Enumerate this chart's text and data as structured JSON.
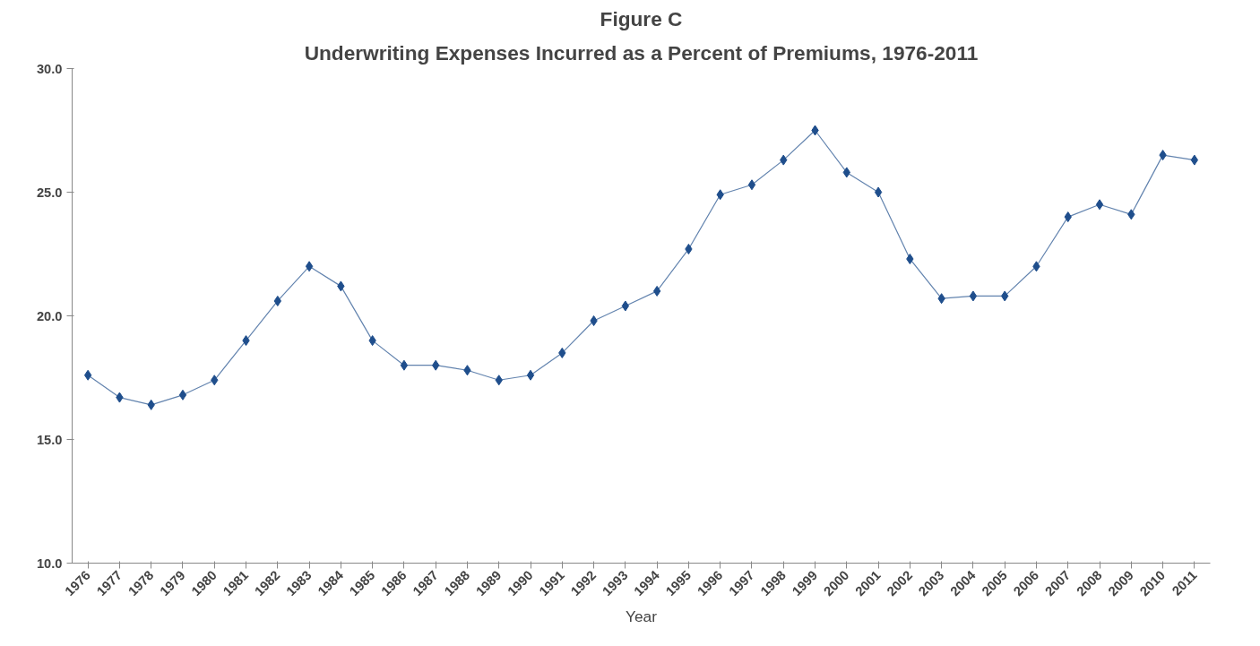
{
  "chart_data": {
    "type": "line",
    "title": "Figure C",
    "subtitle": "Underwriting Expenses Incurred as a Percent of Premiums, 1976-2011",
    "xlabel": "Year",
    "categories": [
      "1976",
      "1977",
      "1978",
      "1979",
      "1980",
      "1981",
      "1982",
      "1983",
      "1984",
      "1985",
      "1986",
      "1987",
      "1988",
      "1989",
      "1990",
      "1991",
      "1992",
      "1993",
      "1994",
      "1995",
      "1996",
      "1997",
      "1998",
      "1999",
      "2000",
      "2001",
      "2002",
      "2003",
      "2004",
      "2005",
      "2006",
      "2007",
      "2008",
      "2009",
      "2010",
      "2011"
    ],
    "series": [
      {
        "color": "#1f4e8c",
        "values": [
          17.6,
          16.7,
          16.4,
          16.8,
          17.4,
          19.0,
          20.6,
          22.0,
          21.2,
          19.0,
          18.0,
          18.0,
          17.8,
          17.4,
          17.6,
          18.5,
          19.8,
          20.4,
          21.0,
          22.7,
          24.9,
          25.3,
          26.3,
          27.5,
          25.8,
          25.0,
          22.3,
          20.7,
          20.8,
          20.8,
          22.0,
          24.0,
          24.5,
          24.1,
          26.5,
          26.3
        ]
      }
    ],
    "ylim": [
      10,
      30
    ],
    "yticks": [
      {
        "value": 10,
        "label": "10.0"
      },
      {
        "value": 15,
        "label": "15.0"
      },
      {
        "value": 20,
        "label": "20.0"
      },
      {
        "value": 25,
        "label": "25.0"
      },
      {
        "value": 30,
        "label": "30.0"
      }
    ],
    "marker": "diamond",
    "line_style": "solid",
    "grid": false
  }
}
